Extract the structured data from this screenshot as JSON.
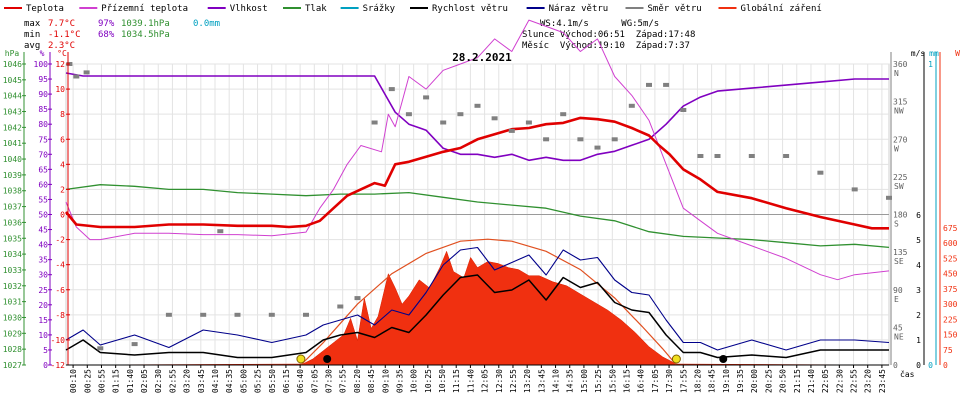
{
  "chart_data": {
    "type": "line",
    "title": "28.2.2021",
    "legend": [
      {
        "label": "Teplota",
        "color": "#e00000"
      },
      {
        "label": "Přízemní teplota",
        "color": "#d040d0"
      },
      {
        "label": "Vlhkost",
        "color": "#8000c0"
      },
      {
        "label": "Tlak",
        "color": "#309030"
      },
      {
        "label": "Srážky",
        "color": "#00a0c0"
      },
      {
        "label": "Rychlost větru",
        "color": "#000000"
      },
      {
        "label": "Náraz větru",
        "color": "#00008a"
      },
      {
        "label": "Směr větru",
        "color": "#808080"
      },
      {
        "label": "Globální záření",
        "color": "#f03010"
      }
    ],
    "stats": {
      "rows": [
        {
          "label": "max",
          "temp": "7.7°C",
          "hum": "97%",
          "press": "1039.1hPa",
          "rain": "0.0mm"
        },
        {
          "label": "min",
          "temp": "-1.1°C",
          "hum": "68%",
          "press": "1034.5hPa",
          "rain": ""
        },
        {
          "label": "avg",
          "temp": "2.3°C",
          "hum": "",
          "press": "",
          "rain": ""
        }
      ],
      "wind_line": "WS:4.1m/s      WG:5m/s",
      "sun_line": "Slunce Východ:06:51  Západ:17:48",
      "moon_line": "Měsíc  Východ:19:10  Západ:7:37"
    },
    "axes": {
      "hpa": {
        "label": "hPa",
        "ticks": [
          "1046",
          "1045",
          "1044",
          "1043",
          "1042",
          "1041",
          "1040",
          "1039",
          "1038",
          "1037",
          "1036",
          "1035",
          "1034",
          "1033",
          "1032",
          "1031",
          "1030",
          "1029",
          "1028",
          "1027"
        ]
      },
      "pct": {
        "label": "%",
        "ticks": [
          "100",
          "95",
          "90",
          "85",
          "80",
          "75",
          "70",
          "65",
          "60",
          "55",
          "50",
          "45",
          "40",
          "35",
          "30",
          "25",
          "20",
          "15",
          "10",
          "5",
          "0"
        ]
      },
      "degc": {
        "label": "°C",
        "ticks": [
          "12",
          "10",
          "8",
          "6",
          "4",
          "2",
          "0",
          "-2",
          "-4",
          "-6",
          "-8",
          "-10",
          "-12"
        ]
      },
      "dir_label": "m/s",
      "dir_ticks": [
        {
          "num": "360",
          "dir": "N"
        },
        {
          "num": "315",
          "dir": "NW"
        },
        {
          "num": "270",
          "dir": "W"
        },
        {
          "num": "225",
          "dir": "SW"
        },
        {
          "num": "180",
          "dir": "S"
        },
        {
          "num": "135",
          "dir": "SE"
        },
        {
          "num": "90",
          "dir": "E"
        },
        {
          "num": "45",
          "dir": "NE"
        },
        {
          "num": "0",
          "dir": ""
        }
      ],
      "ms_ticks": [
        "6",
        "5",
        "4",
        "3",
        "2",
        "1",
        "0"
      ],
      "mm_label": "mm",
      "mm_ticks": [
        "1",
        "0"
      ],
      "w_label": "W",
      "w_ticks": [
        "675",
        "600",
        "525",
        "450",
        "375",
        "300",
        "225",
        "150",
        "75",
        "0"
      ],
      "x_label": "čas",
      "x_ticks": [
        "00:10",
        "00:25",
        "00:55",
        "01:15",
        "01:40",
        "02:05",
        "02:30",
        "02:55",
        "03:20",
        "03:45",
        "04:10",
        "04:35",
        "05:00",
        "05:25",
        "05:50",
        "06:15",
        "06:40",
        "07:05",
        "07:30",
        "07:55",
        "08:20",
        "08:45",
        "09:10",
        "09:35",
        "10:00",
        "10:25",
        "10:50",
        "11:15",
        "11:40",
        "12:05",
        "12:30",
        "12:55",
        "13:20",
        "13:45",
        "14:10",
        "14:35",
        "15:00",
        "15:25",
        "15:50",
        "16:15",
        "16:40",
        "17:05",
        "17:30",
        "17:55",
        "18:20",
        "18:45",
        "19:10",
        "19:35",
        "20:00",
        "20:25",
        "20:50",
        "21:15",
        "21:40",
        "22:05",
        "22:30",
        "22:55",
        "23:20",
        "23:45"
      ]
    },
    "xlim_hours": [
      0,
      24
    ],
    "series": [
      {
        "name": "Teplota",
        "unit": "°C",
        "x": [
          0,
          0.3,
          1,
          2,
          3,
          4,
          5,
          6,
          6.5,
          7,
          7.4,
          7.8,
          8.2,
          9,
          9.3,
          9.6,
          10,
          10.5,
          11,
          11.5,
          12,
          12.5,
          13,
          13.5,
          14,
          14.5,
          15,
          15.5,
          16,
          16.5,
          17,
          17.3,
          17.6,
          18,
          18.5,
          19,
          20,
          21,
          22,
          23,
          23.5,
          24
        ],
        "y": [
          0.2,
          -0.8,
          -1.0,
          -1.0,
          -0.8,
          -0.8,
          -0.9,
          -0.9,
          -1.0,
          -0.9,
          -0.5,
          0.5,
          1.5,
          2.5,
          2.3,
          4.0,
          4.2,
          4.6,
          5.0,
          5.3,
          6.0,
          6.4,
          6.8,
          6.9,
          7.2,
          7.3,
          7.7,
          7.6,
          7.4,
          6.9,
          6.3,
          5.5,
          4.8,
          3.6,
          2.8,
          1.8,
          1.3,
          0.5,
          -0.2,
          -0.8,
          -1.1,
          -1.1
        ]
      },
      {
        "name": "Přízemní teplota",
        "unit": "°C",
        "x": [
          0,
          0.3,
          0.7,
          1,
          2,
          3,
          4,
          5,
          6,
          7,
          7.4,
          7.8,
          8.2,
          8.6,
          9.2,
          9.4,
          9.6,
          9.8,
          10,
          10.5,
          11,
          11.5,
          12,
          12.5,
          13,
          13.5,
          14,
          14.5,
          15,
          15.5,
          16,
          16.5,
          17,
          17.5,
          18,
          18.5,
          19,
          20,
          21,
          22,
          22.5,
          23,
          24
        ],
        "y": [
          1.0,
          -1.0,
          -2.0,
          -2.0,
          -1.5,
          -1.5,
          -1.6,
          -1.6,
          -1.7,
          -1.4,
          0.5,
          2.0,
          4.0,
          5.5,
          5.0,
          8.0,
          7.0,
          9.0,
          11.0,
          10.0,
          11.5,
          12.0,
          12.5,
          14.0,
          13.0,
          15.5,
          15.0,
          14.5,
          13.0,
          14.0,
          11.0,
          9.5,
          7.5,
          4.0,
          0.5,
          -0.5,
          -1.5,
          -2.5,
          -3.5,
          -4.8,
          -5.2,
          -4.8,
          -4.5
        ]
      },
      {
        "name": "Vlhkost",
        "unit": "%",
        "x": [
          0,
          0.5,
          1,
          2,
          3,
          4,
          5,
          6,
          7,
          8,
          9,
          9.3,
          9.6,
          10,
          10.5,
          11,
          11.5,
          12,
          12.5,
          13,
          13.5,
          14,
          14.5,
          15,
          15.5,
          16,
          16.5,
          17,
          17.5,
          18,
          18.5,
          19,
          20,
          21,
          22,
          23,
          24
        ],
        "y": [
          97,
          96,
          96,
          96,
          96,
          96,
          96,
          96,
          96,
          96,
          96,
          90,
          84,
          80,
          78,
          72,
          70,
          70,
          69,
          70,
          68,
          69,
          68,
          68,
          70,
          71,
          73,
          75,
          80,
          86,
          89,
          91,
          92,
          93,
          94,
          95,
          95
        ]
      },
      {
        "name": "Tlak",
        "unit": "hPa",
        "x": [
          0,
          1,
          2,
          3,
          4,
          5,
          6,
          7,
          8,
          9,
          10,
          11,
          12,
          13,
          14,
          15,
          16,
          17,
          18,
          19,
          20,
          21,
          22,
          23,
          24
        ],
        "y": [
          1038.2,
          1038.5,
          1038.4,
          1038.2,
          1038.2,
          1038.0,
          1037.9,
          1037.8,
          1037.9,
          1037.9,
          1038.0,
          1037.7,
          1037.4,
          1037.2,
          1037.0,
          1036.5,
          1036.2,
          1035.5,
          1035.2,
          1035.1,
          1035.0,
          1034.8,
          1034.6,
          1034.7,
          1034.5
        ]
      },
      {
        "name": "Rychlost větru",
        "unit": "m/s",
        "x": [
          0,
          0.5,
          1,
          2,
          3,
          4,
          5,
          6,
          7,
          7.5,
          8,
          8.5,
          9,
          9.5,
          10,
          10.5,
          11,
          11.5,
          12,
          12.5,
          13,
          13.5,
          14,
          14.5,
          15,
          15.5,
          16,
          16.5,
          17,
          17.5,
          18,
          18.5,
          19,
          20,
          21,
          22,
          23,
          24
        ],
        "y": [
          0.6,
          1.0,
          0.5,
          0.4,
          0.5,
          0.5,
          0.3,
          0.3,
          0.5,
          1.0,
          1.2,
          1.3,
          1.1,
          1.5,
          1.3,
          2.0,
          2.8,
          3.5,
          3.6,
          2.9,
          3.0,
          3.4,
          2.6,
          3.5,
          3.1,
          3.3,
          2.5,
          2.2,
          2.1,
          1.2,
          0.5,
          0.5,
          0.3,
          0.4,
          0.3,
          0.6,
          0.6,
          0.6
        ]
      },
      {
        "name": "Náraz větru",
        "unit": "m/s",
        "x": [
          0,
          0.5,
          1,
          2,
          3,
          4,
          5,
          6,
          7,
          7.5,
          8,
          8.5,
          9,
          9.5,
          10,
          10.5,
          11,
          11.5,
          12,
          12.5,
          13,
          13.5,
          14,
          14.5,
          15,
          15.5,
          16,
          16.5,
          17,
          17.5,
          18,
          18.5,
          19,
          20,
          21,
          22,
          23,
          24
        ],
        "y": [
          1.0,
          1.4,
          0.8,
          1.2,
          0.7,
          1.4,
          1.2,
          0.9,
          1.2,
          1.6,
          1.8,
          2.0,
          1.6,
          2.2,
          2.0,
          2.9,
          4.0,
          4.6,
          4.7,
          3.8,
          4.1,
          4.4,
          3.6,
          4.6,
          4.2,
          4.3,
          3.4,
          2.9,
          2.8,
          1.8,
          0.9,
          0.9,
          0.6,
          1.0,
          0.6,
          1.0,
          1.0,
          0.9
        ]
      },
      {
        "name": "Globální záření",
        "unit": "W",
        "x": [
          0,
          6.9,
          7.2,
          7.5,
          7.8,
          8.1,
          8.3,
          8.5,
          8.7,
          8.9,
          9.1,
          9.4,
          9.6,
          9.8,
          10,
          10.3,
          10.6,
          10.9,
          11.1,
          11.3,
          11.6,
          11.8,
          12,
          12.3,
          12.6,
          12.9,
          13.2,
          13.5,
          13.8,
          14.2,
          14.6,
          15,
          15.4,
          15.8,
          16.2,
          16.6,
          17,
          17.4,
          17.8,
          24
        ],
        "y": [
          0,
          5,
          30,
          70,
          110,
          150,
          230,
          120,
          330,
          180,
          240,
          450,
          380,
          300,
          340,
          420,
          380,
          480,
          560,
          460,
          430,
          530,
          480,
          510,
          500,
          480,
          470,
          440,
          440,
          410,
          390,
          350,
          310,
          270,
          220,
          160,
          90,
          40,
          5,
          0
        ]
      },
      {
        "name": "Teoretické záření",
        "unit": "W",
        "x": [
          6.85,
          7.5,
          8.5,
          9.5,
          10.5,
          11.5,
          12.3,
          13,
          14,
          15,
          16,
          16.8,
          17.4,
          17.8
        ],
        "y": [
          0,
          110,
          300,
          450,
          550,
          610,
          620,
          610,
          560,
          470,
          330,
          190,
          80,
          0
        ]
      },
      {
        "name": "Směr větru",
        "unit": "°",
        "x": [
          0.1,
          0.3,
          0.6,
          1,
          2,
          3,
          4,
          4.5,
          5,
          6,
          7,
          8,
          8.5,
          9,
          9.5,
          10,
          10.5,
          11,
          11.5,
          12,
          12.5,
          13,
          13.5,
          14,
          14.5,
          15,
          15.5,
          16,
          16.5,
          17,
          17.5,
          18,
          18.5,
          19,
          20,
          21,
          22,
          23,
          24
        ],
        "y": [
          360,
          345,
          350,
          20,
          25,
          60,
          60,
          160,
          60,
          60,
          60,
          70,
          80,
          290,
          330,
          300,
          320,
          290,
          300,
          310,
          295,
          280,
          290,
          270,
          300,
          270,
          260,
          270,
          310,
          335,
          335,
          305,
          250,
          250,
          250,
          250,
          230,
          210,
          200
        ]
      }
    ]
  }
}
